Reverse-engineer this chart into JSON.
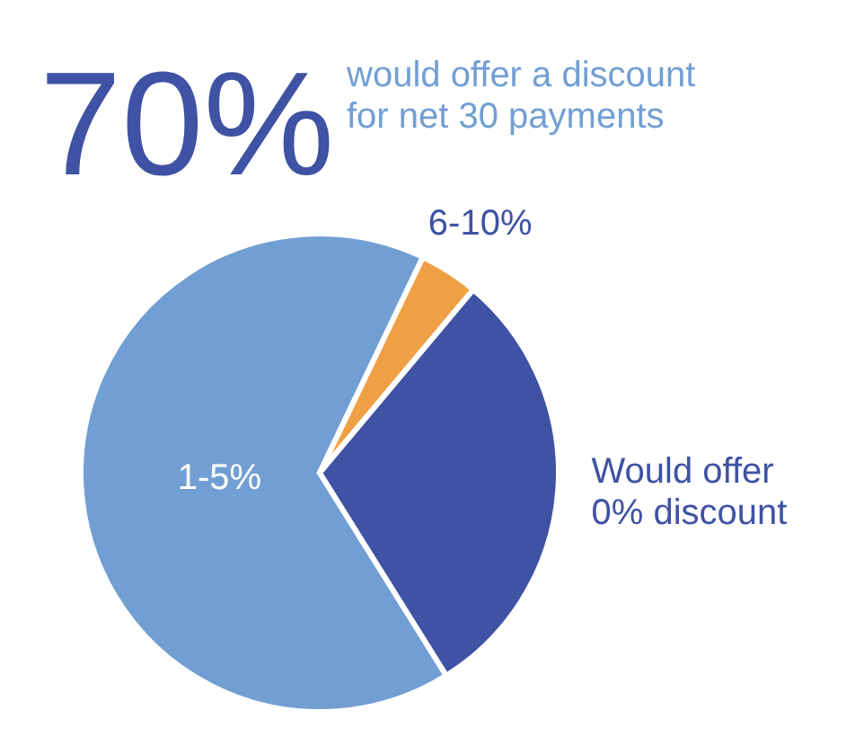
{
  "chart_data": {
    "type": "pie",
    "title": "70%",
    "subtitle": "would offer a discount for net 30 payments",
    "categories": [
      "1-5%",
      "6-10%",
      "Would offer 0% discount"
    ],
    "values": [
      66,
      4,
      30
    ],
    "colors": [
      "#729fd3",
      "#f0a044",
      "#3f52a3"
    ]
  }
}
